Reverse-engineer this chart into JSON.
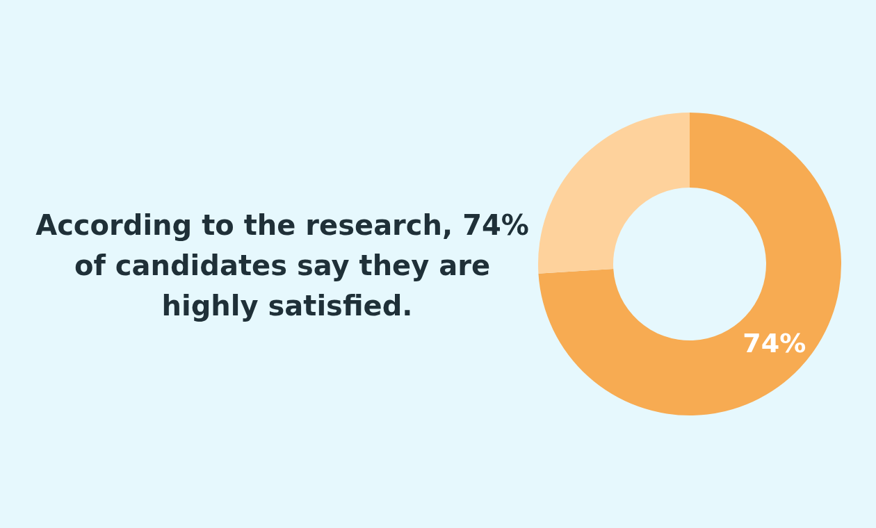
{
  "chart_data": {
    "type": "donut",
    "title": "According to the research, 74% of candidates say they are highly satisfied.",
    "categories": [
      null,
      null
    ],
    "values": [
      74,
      26
    ],
    "colors": [
      "#f7ab52",
      "#fed29c"
    ],
    "value_labels": [
      "74%",
      null
    ]
  }
}
